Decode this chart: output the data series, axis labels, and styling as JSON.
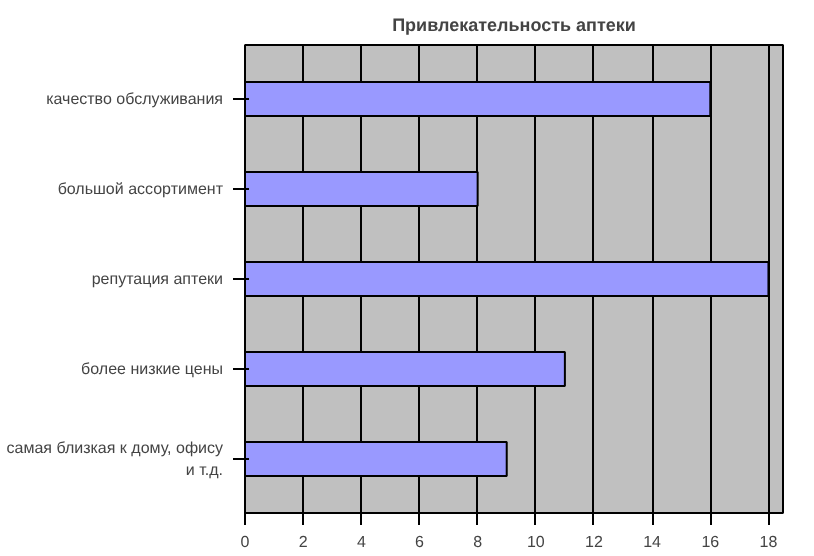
{
  "chart_data": {
    "type": "bar",
    "orientation": "horizontal",
    "title": "Привлекательность аптеки",
    "categories": [
      "качество обслуживания",
      "большой ассортимент",
      "репутация аптеки",
      "более низкие цены",
      "самая близкая к дому, офису и т.д."
    ],
    "values": [
      16,
      8,
      18,
      11,
      9
    ],
    "color": "#9999ff",
    "xlim": [
      0,
      18.5
    ],
    "xticks": [
      0,
      2,
      4,
      6,
      8,
      10,
      12,
      14,
      16,
      18
    ],
    "grid": "x"
  }
}
